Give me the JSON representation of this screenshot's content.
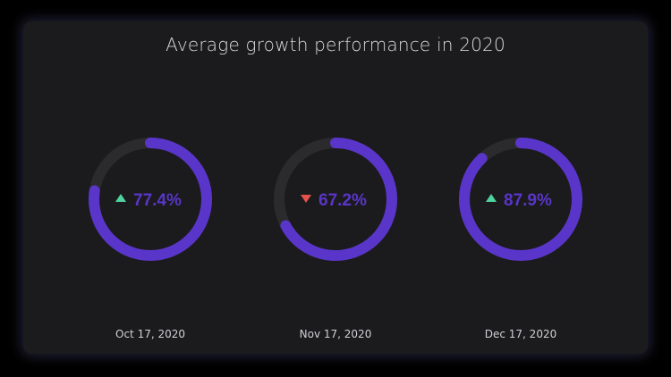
{
  "colors": {
    "background": "#000000",
    "card": "#1b1b1d",
    "track": "#2b2b2d",
    "accent": "#5a35c9",
    "up": "#4fd3a0",
    "down": "#e5524c",
    "date_text": "#d0d0d4",
    "title_text": "#d8d8dc"
  },
  "chart_data": {
    "type": "donut",
    "title": "Average growth performance in 2020",
    "unit": "%",
    "max": 100,
    "items": [
      {
        "date": "Oct 17, 2020",
        "value": 77.4,
        "label": "77.4%",
        "trend": "up",
        "trend_icon": "triangle-up-icon"
      },
      {
        "date": "Nov 17, 2020",
        "value": 67.2,
        "label": "67.2%",
        "trend": "down",
        "trend_icon": "triangle-down-icon"
      },
      {
        "date": "Dec 17, 2020",
        "value": 87.9,
        "label": "87.9%",
        "trend": "up",
        "trend_icon": "triangle-up-icon"
      }
    ]
  }
}
